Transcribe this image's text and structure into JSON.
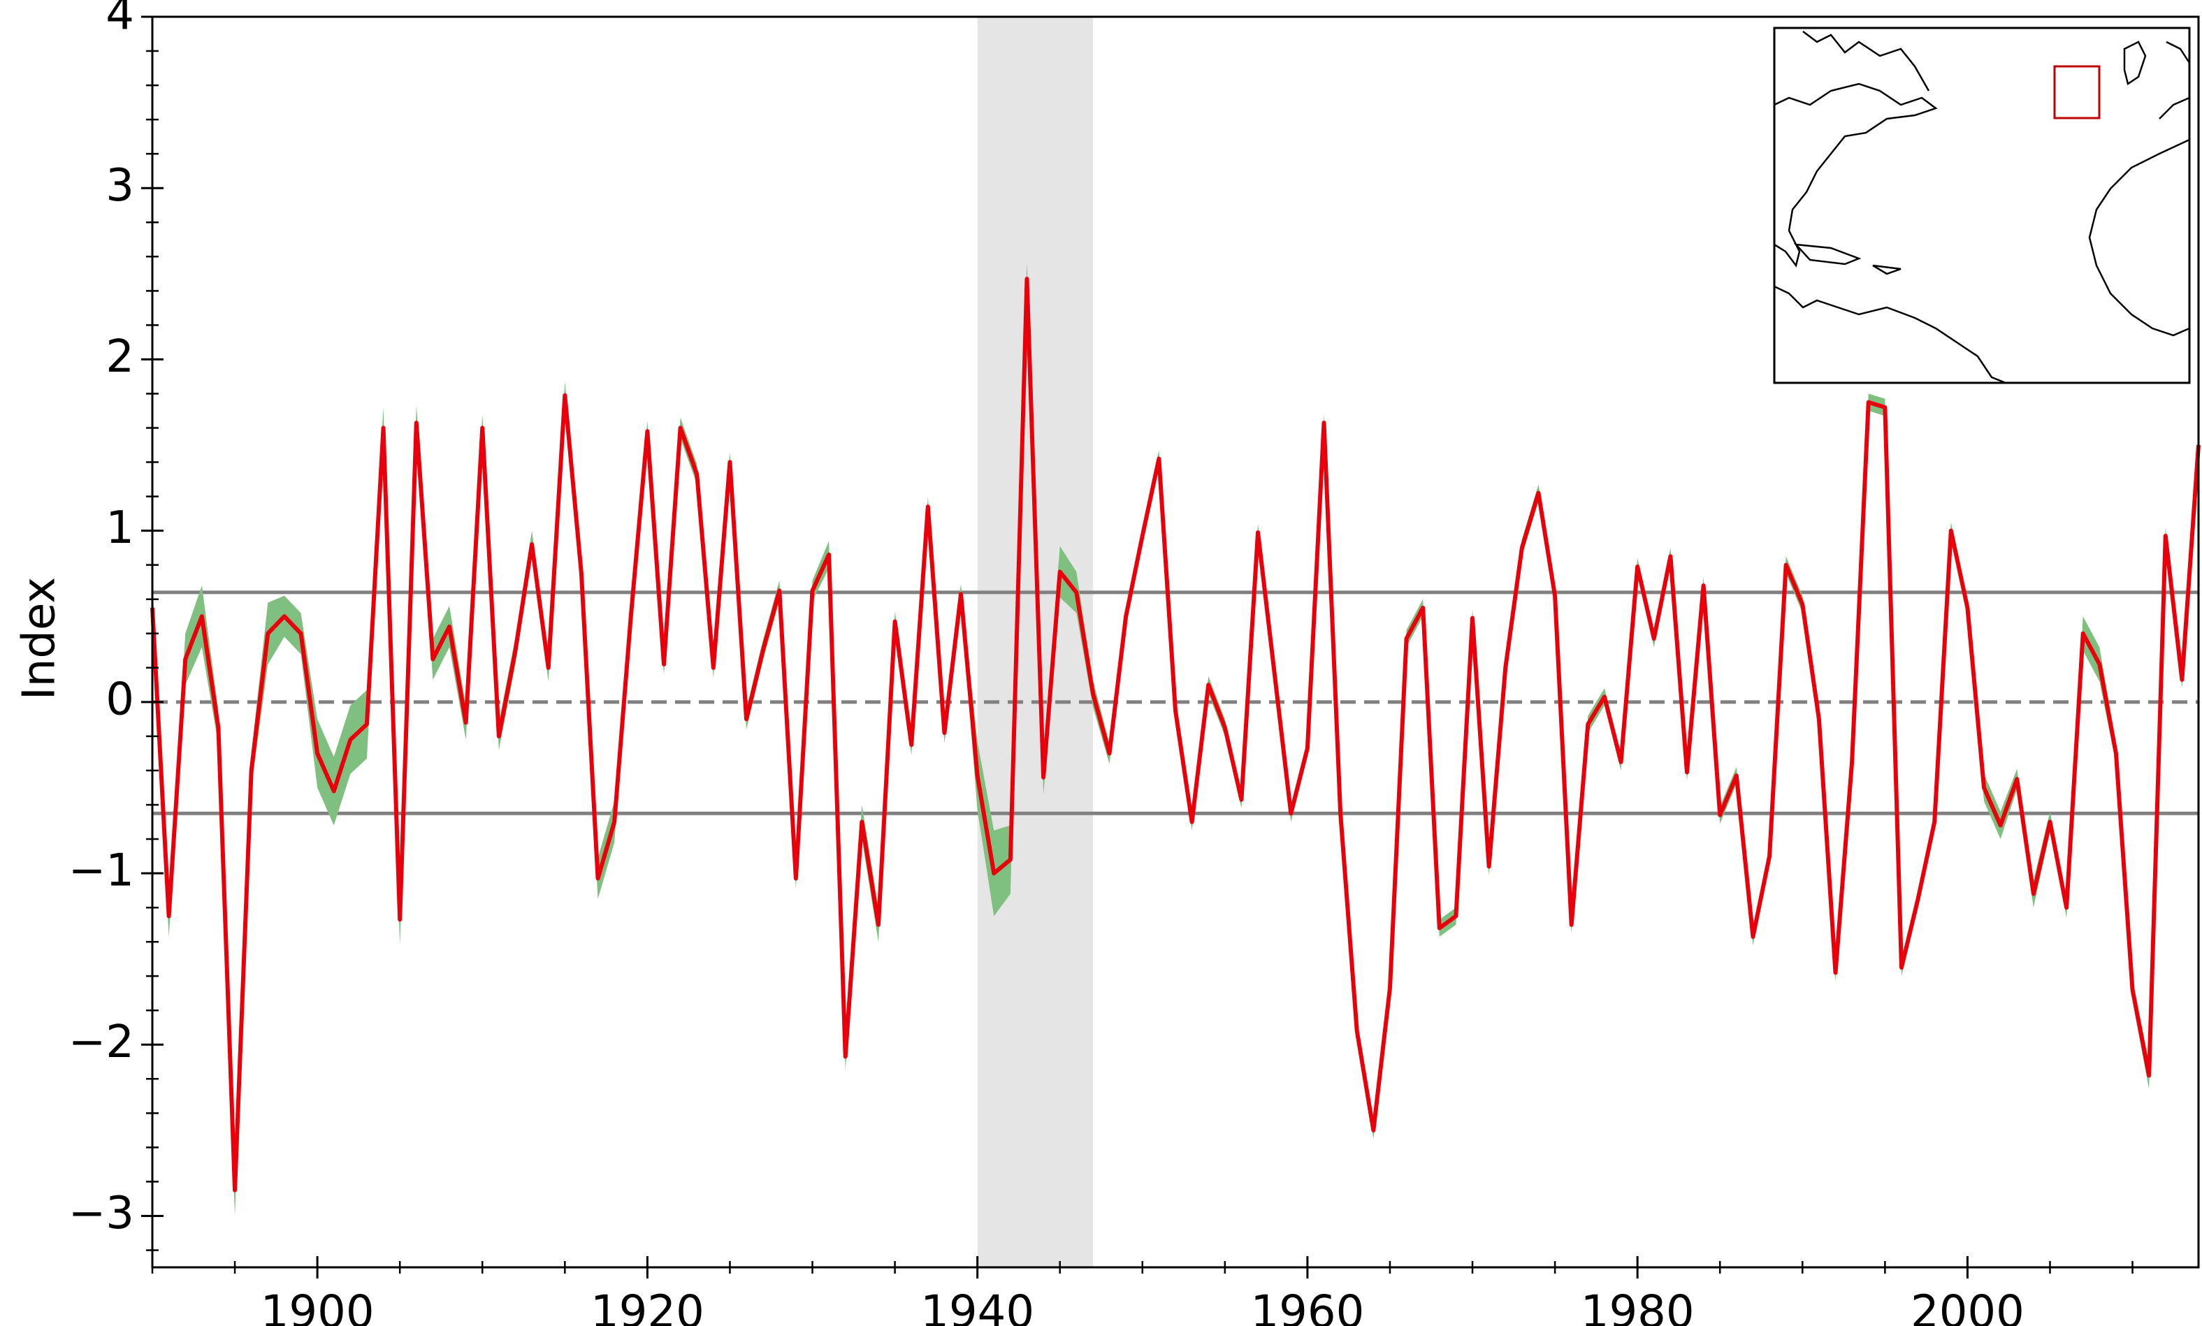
{
  "chart_data": {
    "type": "line",
    "ylabel": "Index",
    "x": [
      1890,
      1891,
      1892,
      1893,
      1894,
      1895,
      1896,
      1897,
      1898,
      1899,
      1900,
      1901,
      1902,
      1903,
      1904,
      1905,
      1906,
      1907,
      1908,
      1909,
      1910,
      1911,
      1912,
      1913,
      1914,
      1915,
      1916,
      1917,
      1918,
      1919,
      1920,
      1921,
      1922,
      1923,
      1924,
      1925,
      1926,
      1927,
      1928,
      1929,
      1930,
      1931,
      1932,
      1933,
      1934,
      1935,
      1936,
      1937,
      1938,
      1939,
      1940,
      1941,
      1942,
      1943,
      1944,
      1945,
      1946,
      1947,
      1948,
      1949,
      1950,
      1951,
      1952,
      1953,
      1954,
      1955,
      1956,
      1957,
      1958,
      1959,
      1960,
      1961,
      1962,
      1963,
      1964,
      1965,
      1966,
      1967,
      1968,
      1969,
      1970,
      1971,
      1972,
      1973,
      1974,
      1975,
      1976,
      1977,
      1978,
      1979,
      1980,
      1981,
      1982,
      1983,
      1984,
      1985,
      1986,
      1987,
      1988,
      1989,
      1990,
      1991,
      1992,
      1993,
      1994,
      1995,
      1996,
      1997,
      1998,
      1999,
      2000,
      2001,
      2002,
      2003,
      2004,
      2005,
      2006,
      2007,
      2008,
      2009,
      2010,
      2011,
      2012,
      2013,
      2014
    ],
    "values": [
      0.55,
      -1.25,
      0.25,
      0.5,
      -0.15,
      -2.85,
      -0.4,
      0.4,
      0.5,
      0.4,
      -0.3,
      -0.52,
      -0.22,
      -0.13,
      1.6,
      -1.27,
      1.63,
      0.25,
      0.44,
      -0.12,
      1.6,
      -0.2,
      0.3,
      0.92,
      0.2,
      1.79,
      0.75,
      -1.03,
      -0.7,
      0.5,
      1.58,
      0.22,
      1.6,
      1.33,
      0.2,
      1.4,
      -0.1,
      0.3,
      0.65,
      -1.03,
      0.65,
      0.86,
      -2.07,
      -0.7,
      -1.3,
      0.47,
      -0.25,
      1.14,
      -0.18,
      0.63,
      -0.43,
      -1.0,
      -0.92,
      2.47,
      -0.44,
      0.76,
      0.64,
      0.05,
      -0.3,
      0.5,
      0.97,
      1.42,
      -0.05,
      -0.7,
      0.1,
      -0.15,
      -0.57,
      0.99,
      0.17,
      -0.65,
      -0.27,
      1.63,
      -0.65,
      -1.92,
      -2.5,
      -1.67,
      0.37,
      0.55,
      -1.32,
      -1.25,
      0.49,
      -0.96,
      0.2,
      0.9,
      1.22,
      0.62,
      -1.3,
      -0.13,
      0.03,
      -0.35,
      0.79,
      0.37,
      0.85,
      -0.41,
      0.68,
      -0.66,
      -0.43,
      -1.37,
      -0.9,
      0.8,
      0.57,
      -0.1,
      -1.58,
      -0.35,
      1.75,
      1.72,
      -1.55,
      -1.15,
      -0.7,
      1.0,
      0.55,
      -0.5,
      -0.72,
      -0.45,
      -1.12,
      -0.7,
      -1.2,
      0.4,
      0.22,
      -0.3,
      -1.68,
      -2.18,
      0.97,
      0.13,
      1.5
    ],
    "errors": [
      0.15,
      0.12,
      0.15,
      0.18,
      0.1,
      0.15,
      0.1,
      0.18,
      0.12,
      0.12,
      0.2,
      0.2,
      0.2,
      0.2,
      0.12,
      0.15,
      0.1,
      0.12,
      0.12,
      0.1,
      0.08,
      0.08,
      0.08,
      0.08,
      0.08,
      0.08,
      0.08,
      0.12,
      0.12,
      0.08,
      0.06,
      0.06,
      0.06,
      0.06,
      0.06,
      0.06,
      0.06,
      0.06,
      0.06,
      0.06,
      0.06,
      0.08,
      0.08,
      0.1,
      0.1,
      0.06,
      0.06,
      0.06,
      0.06,
      0.06,
      0.2,
      0.25,
      0.2,
      0.1,
      0.1,
      0.15,
      0.12,
      0.08,
      0.06,
      0.05,
      0.05,
      0.05,
      0.05,
      0.05,
      0.05,
      0.05,
      0.05,
      0.05,
      0.05,
      0.05,
      0.05,
      0.05,
      0.05,
      0.05,
      0.05,
      0.05,
      0.05,
      0.05,
      0.05,
      0.05,
      0.05,
      0.05,
      0.05,
      0.05,
      0.05,
      0.05,
      0.05,
      0.05,
      0.05,
      0.05,
      0.05,
      0.05,
      0.05,
      0.05,
      0.05,
      0.05,
      0.05,
      0.05,
      0.05,
      0.05,
      0.05,
      0.05,
      0.05,
      0.05,
      0.05,
      0.05,
      0.05,
      0.05,
      0.05,
      0.05,
      0.05,
      0.08,
      0.08,
      0.06,
      0.08,
      0.06,
      0.06,
      0.1,
      0.1,
      0.06,
      0.06,
      0.08,
      0.05,
      0.05,
      0.05
    ],
    "color": "#e8000b",
    "band_color": "#7fbf7f",
    "xlim": [
      1890,
      2014
    ],
    "ylim": [
      -3.3,
      4
    ],
    "xticks": [
      1900,
      1920,
      1940,
      1960,
      1980,
      2000
    ],
    "yticks": [
      {
        "value": -3,
        "label": "−3"
      },
      {
        "value": -2,
        "label": "−2"
      },
      {
        "value": -1,
        "label": "−1"
      },
      0,
      1,
      2,
      3,
      4
    ],
    "xminorticks": [
      1890,
      1895,
      1905,
      1910,
      1915,
      1925,
      1930,
      1935,
      1945,
      1950,
      1955,
      1965,
      1970,
      1975,
      1985,
      1990,
      1995,
      2005,
      2010
    ],
    "yminorticks": [
      -3.2,
      -2.8,
      -2.6,
      -2.4,
      -2.2,
      -1.8,
      -1.6,
      -1.4,
      -1.2,
      -0.8,
      -0.6,
      -0.4,
      -0.2,
      0.2,
      0.4,
      0.6,
      0.8,
      1.2,
      1.4,
      1.6,
      1.8,
      2.2,
      2.4,
      2.6,
      2.8,
      3.2,
      3.4,
      3.6,
      3.8
    ],
    "hlines": [
      {
        "value": 0.64,
        "style": "solid"
      },
      {
        "value": 0,
        "style": "dashed"
      },
      {
        "value": -0.65,
        "style": "solid"
      }
    ],
    "hline_color": "#808080",
    "span": {
      "xlim": [
        1940,
        1947
      ],
      "color": "#e5e5e5"
    }
  }
}
